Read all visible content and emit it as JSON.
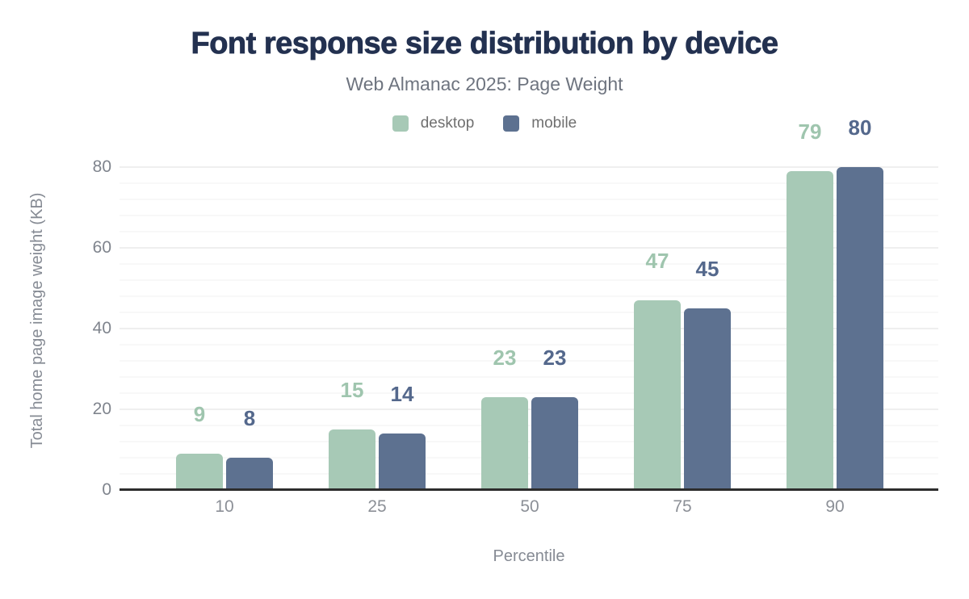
{
  "title": "Font response size distribution by device",
  "subtitle": "Web Almanac 2025: Page Weight",
  "chart_data": {
    "type": "bar",
    "title": "Font response size distribution by device",
    "subtitle": "Web Almanac 2025: Page Weight",
    "categories": [
      "10",
      "25",
      "50",
      "75",
      "90"
    ],
    "series": [
      {
        "name": "desktop",
        "color": "#a7c9b6",
        "label_color": "#9fc5ae",
        "values": [
          9,
          15,
          23,
          47,
          79
        ]
      },
      {
        "name": "mobile",
        "color": "#5d7190",
        "label_color": "#54688c",
        "values": [
          8,
          14,
          23,
          45,
          80
        ]
      }
    ],
    "xlabel": "Percentile",
    "ylabel": "Total home page image weight (KB)",
    "ylim": [
      0,
      80
    ],
    "yticks": [
      0,
      20,
      40,
      60,
      80
    ],
    "minor_grid_step": 4,
    "grid": "horizontal",
    "legend_position": "top-center",
    "value_labels": true,
    "axis_color": "#2d2d2d",
    "title_color": "#233150",
    "subtitle_color": "#6e747f",
    "tick_label_color": "#8c9097"
  }
}
